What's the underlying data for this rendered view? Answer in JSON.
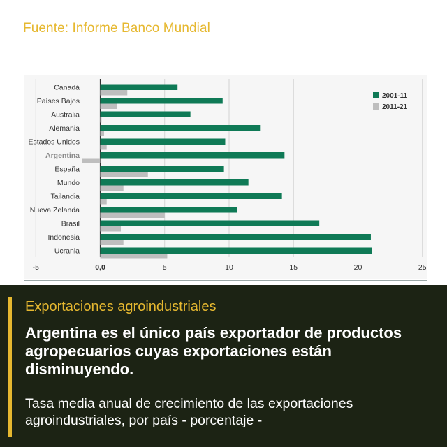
{
  "source": "Fuente: Informe Banco Mundial",
  "panel": {
    "title": "Exportaciones agroindustriales",
    "headline": "Argentina es el único país exportador de productos agropecuarios cuyas exportaciones están disminuyendo.",
    "subtitle": "Tasa media anual de crecimiento de las exportaciones agroindustriales, por país - porcentaje -"
  },
  "colors": {
    "series_2001": "#0f7a56",
    "series_2011": "#bebebe",
    "accent": "#e6b830",
    "panel_bg": "#1c2314"
  },
  "chart_data": {
    "type": "bar",
    "orientation": "horizontal",
    "categories": [
      "Canadá",
      "Países Bajos",
      "Australia",
      "Alemania",
      "Estados Unidos",
      "Argentina",
      "España",
      "Mundo",
      "Tailandia",
      "Nueva Zelanda",
      "Brasil",
      "Indonesia",
      "Ucrania"
    ],
    "highlight_category": "Argentina",
    "series": [
      {
        "name": "2001-11",
        "values": [
          6.0,
          9.5,
          7.0,
          12.4,
          9.7,
          14.3,
          9.6,
          11.5,
          14.1,
          10.6,
          17.0,
          21.0,
          21.1
        ]
      },
      {
        "name": "2011-21",
        "values": [
          2.1,
          1.3,
          0.1,
          0.3,
          0.5,
          -1.4,
          3.7,
          1.8,
          0.5,
          5.0,
          1.6,
          1.8,
          5.2
        ]
      }
    ],
    "xlim": [
      -5,
      25
    ],
    "xticks": [
      "-5",
      "0,0",
      "5",
      "10",
      "15",
      "20",
      "25"
    ],
    "xtick_values": [
      -5,
      0,
      5,
      10,
      15,
      20,
      25
    ],
    "legend_position": "top-right",
    "grid": "vertical"
  }
}
